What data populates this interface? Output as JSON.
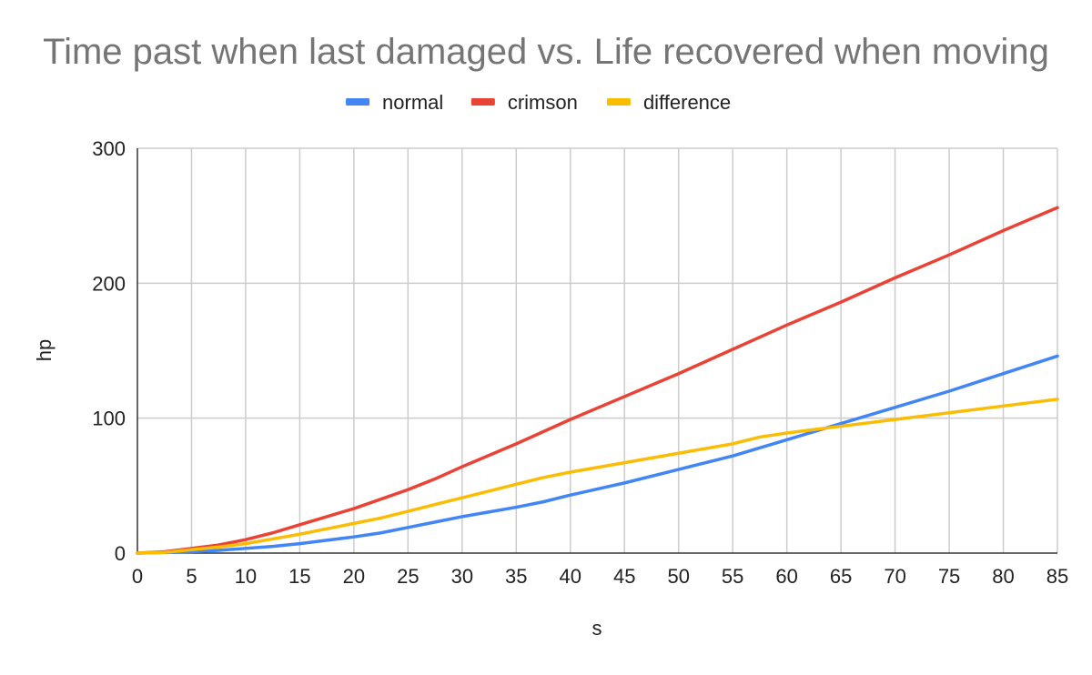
{
  "chart_data": {
    "type": "line",
    "title": "Time past when last damaged vs. Life recovered when moving",
    "xlabel": "s",
    "ylabel": "hp",
    "xlim": [
      0,
      85
    ],
    "ylim": [
      0,
      300
    ],
    "x_ticks": [
      "0",
      "5",
      "10",
      "15",
      "20",
      "25",
      "30",
      "35",
      "40",
      "45",
      "50",
      "55",
      "60",
      "65",
      "70",
      "75",
      "80",
      "85"
    ],
    "y_ticks": [
      "0",
      "100",
      "200",
      "300"
    ],
    "grid": true,
    "legend_position": "top",
    "series": [
      {
        "name": "normal",
        "color": "#4285f4",
        "points": [
          [
            0,
            0
          ],
          [
            2.5,
            0.5
          ],
          [
            5,
            1
          ],
          [
            7.5,
            2
          ],
          [
            10,
            3.5
          ],
          [
            12.5,
            5
          ],
          [
            15,
            7
          ],
          [
            17.5,
            9.5
          ],
          [
            20,
            12
          ],
          [
            22.5,
            15
          ],
          [
            25,
            19
          ],
          [
            27.5,
            23
          ],
          [
            30,
            27
          ],
          [
            32.5,
            30.5
          ],
          [
            35,
            34
          ],
          [
            37.5,
            38
          ],
          [
            40,
            43
          ],
          [
            45,
            52
          ],
          [
            50,
            62
          ],
          [
            55,
            72
          ],
          [
            57.5,
            78
          ],
          [
            60,
            84
          ],
          [
            65,
            96
          ],
          [
            70,
            108
          ],
          [
            75,
            120
          ],
          [
            80,
            133
          ],
          [
            85,
            146
          ]
        ]
      },
      {
        "name": "crimson",
        "color": "#ea4335",
        "points": [
          [
            0,
            0
          ],
          [
            2.5,
            1
          ],
          [
            5,
            3.5
          ],
          [
            7.5,
            6
          ],
          [
            10,
            10
          ],
          [
            12.5,
            15
          ],
          [
            15,
            21
          ],
          [
            17.5,
            27
          ],
          [
            20,
            33
          ],
          [
            22.5,
            40
          ],
          [
            25,
            47
          ],
          [
            27.5,
            55
          ],
          [
            30,
            64
          ],
          [
            35,
            81
          ],
          [
            40,
            99
          ],
          [
            45,
            116
          ],
          [
            50,
            133
          ],
          [
            55,
            151
          ],
          [
            60,
            169
          ],
          [
            65,
            186
          ],
          [
            70,
            204
          ],
          [
            75,
            221
          ],
          [
            80,
            239
          ],
          [
            85,
            256
          ]
        ]
      },
      {
        "name": "difference",
        "color": "#fbbc04",
        "points": [
          [
            0,
            0
          ],
          [
            2.5,
            0.5
          ],
          [
            5,
            2.5
          ],
          [
            7.5,
            4.5
          ],
          [
            10,
            7
          ],
          [
            12.5,
            10.5
          ],
          [
            15,
            14
          ],
          [
            17.5,
            18
          ],
          [
            20,
            22
          ],
          [
            22.5,
            26
          ],
          [
            25,
            31
          ],
          [
            27.5,
            36
          ],
          [
            30,
            41
          ],
          [
            32.5,
            46
          ],
          [
            35,
            51
          ],
          [
            37.5,
            56
          ],
          [
            40,
            60
          ],
          [
            45,
            67
          ],
          [
            50,
            74
          ],
          [
            55,
            81
          ],
          [
            57.5,
            86
          ],
          [
            60,
            89
          ],
          [
            65,
            94
          ],
          [
            70,
            99
          ],
          [
            75,
            104
          ],
          [
            80,
            109
          ],
          [
            85,
            114
          ]
        ]
      }
    ]
  }
}
